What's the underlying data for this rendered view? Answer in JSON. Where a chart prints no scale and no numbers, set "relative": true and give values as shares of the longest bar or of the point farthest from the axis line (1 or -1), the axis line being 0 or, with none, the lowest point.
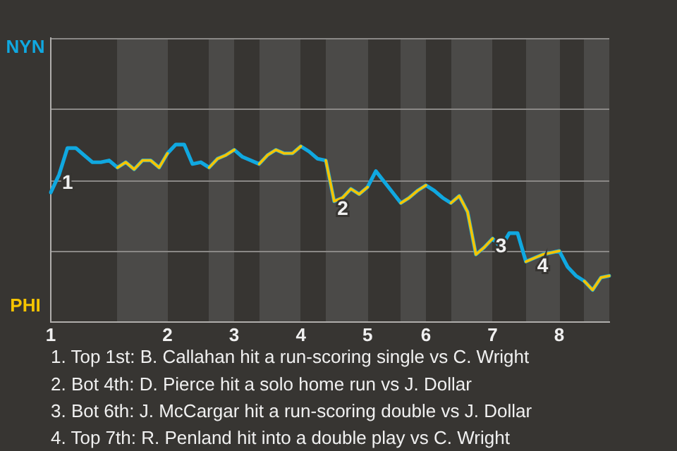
{
  "chart_data": {
    "type": "line",
    "relative": true,
    "categories": [
      "1",
      null,
      null,
      null,
      null,
      null,
      null,
      null,
      null,
      null,
      null,
      null,
      null,
      null,
      "2",
      null,
      null,
      null,
      null,
      null,
      null,
      null,
      "3",
      null,
      null,
      null,
      null,
      null,
      null,
      null,
      "4",
      null,
      null,
      null,
      null,
      null,
      null,
      null,
      "5",
      null,
      null,
      null,
      null,
      null,
      null,
      "6",
      null,
      null,
      null,
      null,
      null,
      null,
      null,
      "7",
      null,
      null,
      null,
      null,
      null,
      null,
      null,
      "8",
      null,
      null,
      null,
      null,
      null,
      null
    ],
    "legend": false,
    "marker": "none",
    "line_style": "solid",
    "series": [
      {
        "color": "#10a8e0",
        "values": [
          0.73,
          0.83,
          0.98,
          0.98,
          0.94,
          0.9,
          0.9,
          0.91,
          0.87,
          0.9,
          0.86,
          0.91,
          0.91,
          0.87,
          0.95,
          1,
          1,
          0.89,
          0.9,
          0.87,
          0.92,
          0.94,
          0.97,
          0.93,
          0.91,
          0.89,
          0.94,
          0.97,
          0.95,
          0.95,
          0.99,
          0.96,
          0.92,
          0.91,
          0.68,
          0.7,
          0.75,
          0.72,
          0.76,
          0.85,
          0.79,
          0.73,
          0.67,
          0.7,
          0.74,
          0.77,
          0.74,
          0.7,
          0.67,
          0.71,
          0.62,
          0.38,
          0.42,
          0.47,
          0.42,
          0.5,
          0.5,
          0.34,
          0.36,
          0.38,
          0.39,
          0.4,
          0.31,
          0.26,
          0.23,
          0.18,
          0.25,
          0.26
        ]
      },
      {
        "color": "#f5c400",
        "values": [
          null,
          null,
          null,
          null,
          null,
          null,
          null,
          null,
          0.87,
          0.9,
          0.86,
          0.91,
          0.91,
          0.87,
          0.95,
          null,
          null,
          null,
          null,
          0.87,
          0.92,
          0.94,
          0.97,
          null,
          null,
          0.89,
          0.94,
          0.97,
          0.95,
          0.95,
          0.99,
          null,
          null,
          0.91,
          0.68,
          0.7,
          0.75,
          0.72,
          0.76,
          null,
          null,
          null,
          0.67,
          0.7,
          0.74,
          0.77,
          null,
          null,
          0.67,
          0.71,
          0.62,
          0.38,
          0.42,
          0.47,
          null,
          null,
          null,
          0.34,
          0.36,
          0.38,
          0.39,
          0.4,
          null,
          null,
          0.23,
          0.18,
          0.25,
          0.26
        ]
      }
    ],
    "annotations": [
      "NYN",
      "PHI",
      {
        "text": "1",
        "y": 0.83
      },
      {
        "text": "2",
        "y": 0.68
      },
      {
        "text": "3",
        "y": 0.47
      },
      {
        "text": "4",
        "y": 0.36
      },
      "1. Top 1st: B. Callahan hit a run-scoring single vs C. Wright",
      "2. Bot 4th: D. Pierce hit a solo home run vs J. Dollar",
      "3. Bot 6th: J. McCargar hit a run-scoring double vs J. Dollar",
      "4. Top 7th: R. Penland hit into a double play vs C. Wright"
    ]
  }
}
